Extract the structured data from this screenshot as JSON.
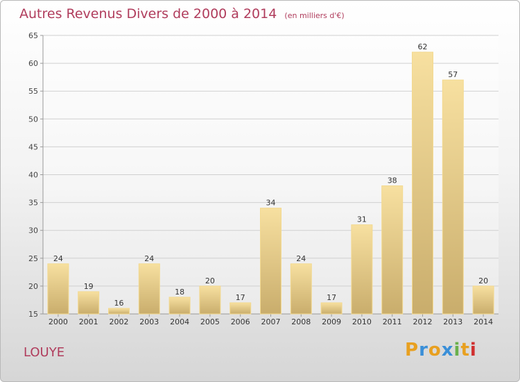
{
  "chart_data": {
    "type": "bar",
    "title": "Autres Revenus Divers de 2000 à 2014",
    "unit": "(en milliers d'€)",
    "categories": [
      "2000",
      "2001",
      "2002",
      "2003",
      "2004",
      "2005",
      "2006",
      "2007",
      "2008",
      "2009",
      "2010",
      "2011",
      "2012",
      "2013",
      "2014"
    ],
    "values": [
      24,
      19,
      16,
      24,
      18,
      20,
      17,
      34,
      24,
      17,
      31,
      38,
      62,
      57,
      20
    ],
    "ylim": [
      15,
      65
    ],
    "yticks": [
      15,
      20,
      25,
      30,
      35,
      40,
      45,
      50,
      55,
      60,
      65
    ],
    "grid": true,
    "bar_color": "#f0d28c"
  },
  "commune": "LOUYE",
  "logo": {
    "letters": [
      "P",
      "r",
      "o",
      "x",
      "i",
      "t",
      "i"
    ],
    "colors": [
      "#e8a020",
      "#3a8fd8",
      "#e8a020",
      "#3a8fd8",
      "#6ab04c",
      "#e8a020",
      "#d03030"
    ]
  }
}
